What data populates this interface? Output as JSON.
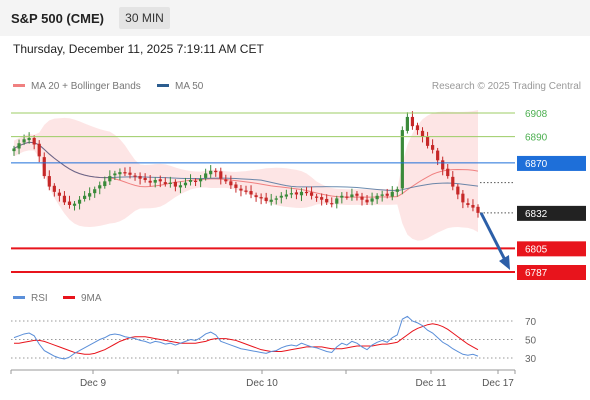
{
  "header": {
    "title": "S&P 500 (CME)",
    "timeframe": "30 MIN",
    "datetime": "Thursday, December 11, 2025 7:19:11 AM CET"
  },
  "legend": {
    "ma20": "MA 20 + Bollinger Bands",
    "ma50": "MA 50",
    "credit": "Research © 2025 Trading Central",
    "rsi": "RSI",
    "ma9": "9MA"
  },
  "colors": {
    "up": "#3a8a3a",
    "down": "#c62828",
    "ma20": "#f08080",
    "ma50": "#2c5d8f",
    "band": "#fde0e0",
    "level_green": "#9ccc65",
    "pivot_blue": "#1e6fd9",
    "support_red": "#e8141c",
    "arrow": "#2c5fa8",
    "rsi_line": "#5b8fd9",
    "rsi_ma": "#e8141c"
  },
  "chart_data": [
    {
      "type": "candlestick",
      "x_ticks": [
        "Dec 9",
        "Dec 10",
        "Dec 11",
        "Dec 17"
      ],
      "price_levels": [
        {
          "value": 6908,
          "label": "6908",
          "kind": "resistance"
        },
        {
          "value": 6890,
          "label": "6890",
          "kind": "resistance"
        },
        {
          "value": 6870,
          "label": "6870",
          "kind": "pivot"
        },
        {
          "value": 6832,
          "label": "6832",
          "kind": "last_price"
        },
        {
          "value": 6805,
          "label": "6805",
          "kind": "support"
        },
        {
          "value": 6787,
          "label": "6787",
          "kind": "support"
        }
      ],
      "ylim": [
        6780,
        6920
      ],
      "last_price": 6832,
      "forecast": {
        "direction": "down",
        "from": 6832,
        "to": 6787
      },
      "close": [
        6881,
        6885,
        6888,
        6889,
        6884,
        6875,
        6860,
        6852,
        6848,
        6845,
        6840,
        6838,
        6839,
        6842,
        6845,
        6847,
        6850,
        6853,
        6856,
        6860,
        6862,
        6863,
        6862,
        6861,
        6860,
        6858,
        6857,
        6855,
        6857,
        6856,
        6854,
        6855,
        6852,
        6853,
        6855,
        6857,
        6856,
        6858,
        6862,
        6864,
        6863,
        6858,
        6856,
        6853,
        6851,
        6849,
        6848,
        6846,
        6844,
        6843,
        6841,
        6842,
        6843,
        6845,
        6846,
        6847,
        6846,
        6848,
        6847,
        6845,
        6844,
        6842,
        6840,
        6839,
        6843,
        6845,
        6844,
        6846,
        6845,
        6842,
        6840,
        6843,
        6845,
        6846,
        6845,
        6848,
        6850,
        6895,
        6905,
        6898,
        6895,
        6890,
        6883,
        6880,
        6872,
        6865,
        6860,
        6852,
        6846,
        6840,
        6838,
        6836,
        6832
      ],
      "rsi": {
        "values": [
          52,
          54,
          56,
          57,
          54,
          45,
          38,
          35,
          32,
          30,
          29,
          31,
          35,
          38,
          41,
          44,
          47,
          50,
          52,
          55,
          56,
          55,
          53,
          52,
          51,
          49,
          48,
          46,
          48,
          47,
          45,
          46,
          44,
          46,
          48,
          50,
          49,
          52,
          56,
          58,
          55,
          48,
          46,
          44,
          42,
          40,
          39,
          38,
          37,
          36,
          35,
          37,
          38,
          41,
          43,
          44,
          43,
          46,
          44,
          42,
          41,
          39,
          37,
          36,
          42,
          46,
          44,
          48,
          46,
          42,
          39,
          44,
          47,
          49,
          47,
          52,
          55,
          72,
          75,
          70,
          68,
          65,
          60,
          57,
          52,
          47,
          44,
          40,
          37,
          34,
          33,
          34,
          32
        ],
        "ma9": [
          46,
          46,
          47,
          48,
          49,
          49,
          48,
          46,
          44,
          42,
          40,
          38,
          36,
          35,
          34,
          34,
          35,
          37,
          39,
          42,
          45,
          48,
          50,
          52,
          53,
          53,
          53,
          52,
          51,
          50,
          49,
          48,
          47,
          46,
          46,
          46,
          46,
          47,
          48,
          50,
          51,
          51,
          51,
          50,
          49,
          47,
          45,
          43,
          41,
          39,
          38,
          37,
          37,
          37,
          38,
          39,
          40,
          41,
          42,
          42,
          42,
          42,
          41,
          40,
          40,
          40,
          41,
          42,
          43,
          43,
          43,
          43,
          44,
          45,
          45,
          46,
          47,
          51,
          55,
          59,
          62,
          64,
          66,
          67,
          66,
          64,
          61,
          57,
          53,
          49,
          45,
          42,
          39
        ],
        "levels": [
          70,
          50,
          30
        ],
        "ylim": [
          20,
          80
        ]
      }
    }
  ]
}
